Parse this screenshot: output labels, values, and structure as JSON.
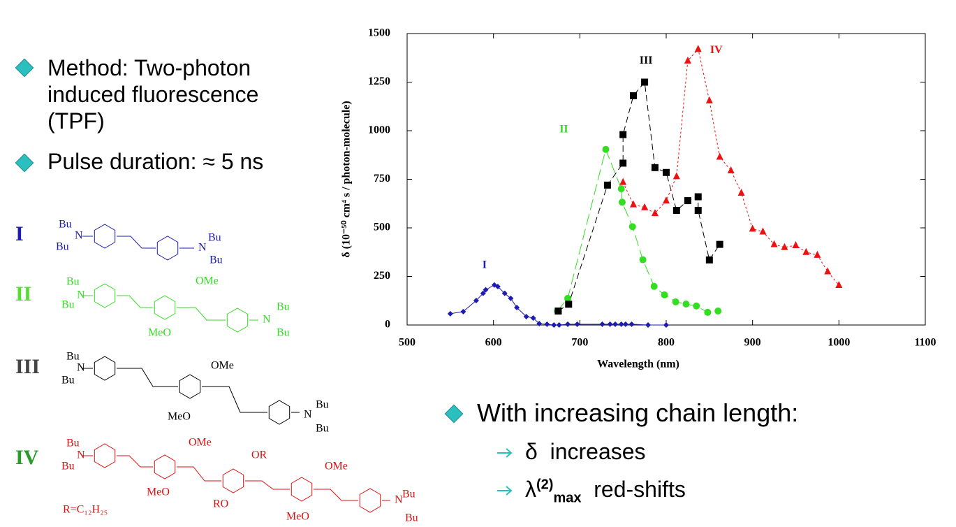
{
  "bullets_left": [
    "Method: Two-photon induced fluorescence (TPF)",
    "Pulse duration:  ≈ 5 ns"
  ],
  "molecules": [
    {
      "label": "I",
      "texts": [
        "Bu",
        "N",
        "Bu",
        "Bu",
        "N",
        "Bu"
      ]
    },
    {
      "label": "II",
      "texts": [
        "Bu",
        "N",
        "Bu",
        "OMe",
        "MeO",
        "Bu",
        "N",
        "Bu"
      ]
    },
    {
      "label": "III",
      "texts": [
        "Bu",
        "N",
        "Bu",
        "OMe",
        "MeO",
        "Bu",
        "N",
        "Bu"
      ]
    },
    {
      "label": "IV",
      "texts": [
        "Bu",
        "N",
        "Bu",
        "OMe",
        "MeO",
        "OR",
        "RO",
        "OMe",
        "MeO",
        "Bu",
        "N",
        "Bu",
        "R=C₁₂H₂₅"
      ]
    }
  ],
  "summary": {
    "heading": "With increasing chain length:",
    "items": [
      {
        "symbol": "δ",
        "text": "increases"
      },
      {
        "symbol": "λ",
        "sup": "(2)",
        "sub": "max",
        "text": "red-shifts"
      }
    ]
  },
  "chart_data": {
    "type": "line",
    "x_label": "Wavelength (nm)",
    "y_label": "δ (10⁻⁵⁰ cm⁴ s / photon-molecule)",
    "xlim": [
      500,
      1100
    ],
    "xticks": [
      500,
      600,
      700,
      800,
      900,
      1000,
      1100
    ],
    "ylim": [
      0,
      1500
    ],
    "yticks": [
      0,
      250,
      500,
      750,
      1000,
      1250,
      1500
    ],
    "grid": false,
    "series": [
      {
        "name": "I",
        "color": "#1c1cb0",
        "marker": "diamond",
        "dash": "solid",
        "x": [
          550,
          565,
          580,
          588,
          591,
          601,
          605,
          613,
          620,
          627,
          638,
          646,
          653,
          662,
          670,
          676,
          686,
          697,
          726,
          735,
          741,
          748,
          753,
          760,
          779,
          800
        ],
        "values": [
          58,
          69,
          126,
          163,
          181,
          206,
          198,
          163,
          137,
          90,
          43,
          36,
          7,
          4,
          0,
          0,
          4,
          4,
          4,
          4,
          4,
          4,
          4,
          4,
          0,
          0
        ]
      },
      {
        "name": "II",
        "color": "#33dd22",
        "marker": "circle",
        "dash": "longdash",
        "x": [
          674,
          686,
          730,
          748,
          749,
          761,
          773,
          786,
          798,
          811,
          823,
          835,
          848,
          860
        ],
        "values": [
          72,
          137,
          904,
          701,
          632,
          506,
          336,
          199,
          155,
          119,
          108,
          98,
          65,
          72
        ]
      },
      {
        "name": "III",
        "color": "#000000",
        "marker": "square",
        "dash": "dash",
        "x": [
          675,
          687,
          732,
          750,
          750,
          762,
          775,
          787,
          800,
          812,
          825,
          837,
          837,
          850,
          862
        ],
        "values": [
          72,
          107,
          720,
          833,
          980,
          1180,
          1250,
          810,
          785,
          590,
          640,
          660,
          590,
          335,
          415
        ]
      },
      {
        "name": "IV",
        "color": "#ee1111",
        "marker": "triangle",
        "dash": "dot",
        "x": [
          750,
          762,
          775,
          787,
          800,
          812,
          825,
          837,
          850,
          862,
          875,
          887,
          900,
          912,
          925,
          937,
          950,
          962,
          975,
          987,
          1000
        ],
        "values": [
          735,
          620,
          605,
          575,
          640,
          765,
          1360,
          1420,
          1155,
          865,
          795,
          680,
          495,
          480,
          415,
          400,
          410,
          375,
          360,
          275,
          205
        ]
      }
    ]
  }
}
